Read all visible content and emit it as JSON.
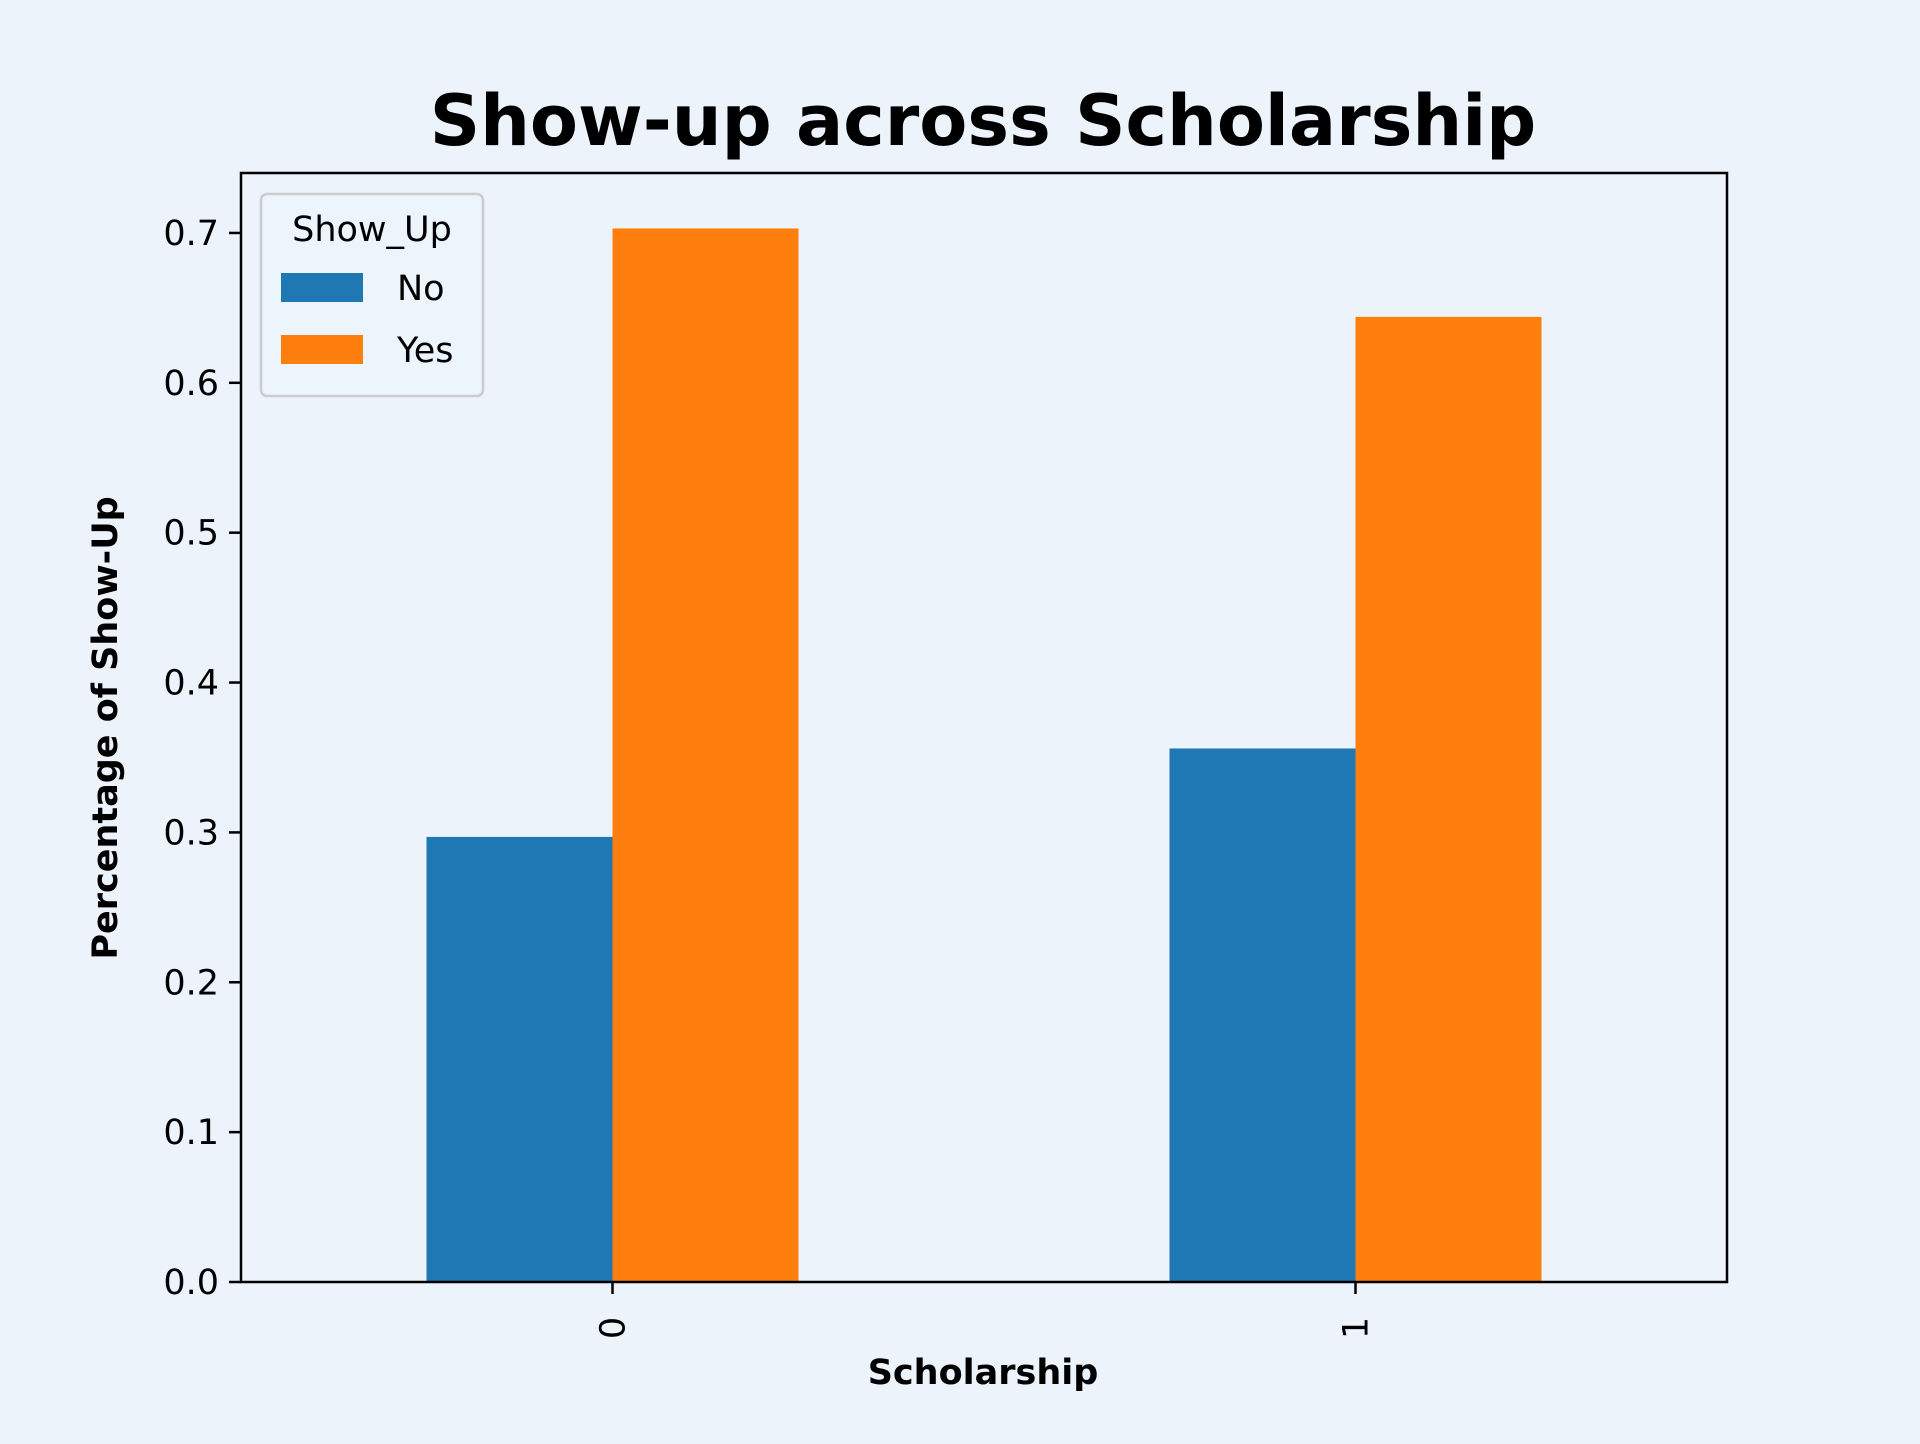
{
  "chart_data": {
    "type": "bar",
    "title": "Show-up across Scholarship",
    "xlabel": "Scholarship",
    "ylabel": "Percentage of Show-Up",
    "categories": [
      "0",
      "1"
    ],
    "series": [
      {
        "name": "No",
        "values": [
          0.297,
          0.356
        ],
        "color": "#1f77b4"
      },
      {
        "name": "Yes",
        "values": [
          0.703,
          0.644
        ],
        "color": "#ff7f0e"
      }
    ],
    "ylim": [
      0,
      0.74
    ],
    "yticks": [
      "0.0",
      "0.1",
      "0.2",
      "0.3",
      "0.4",
      "0.5",
      "0.6",
      "0.7"
    ],
    "legend": {
      "title": "Show_Up",
      "position": "top-left"
    },
    "grid": false,
    "background_color": "#ecf3fb"
  }
}
